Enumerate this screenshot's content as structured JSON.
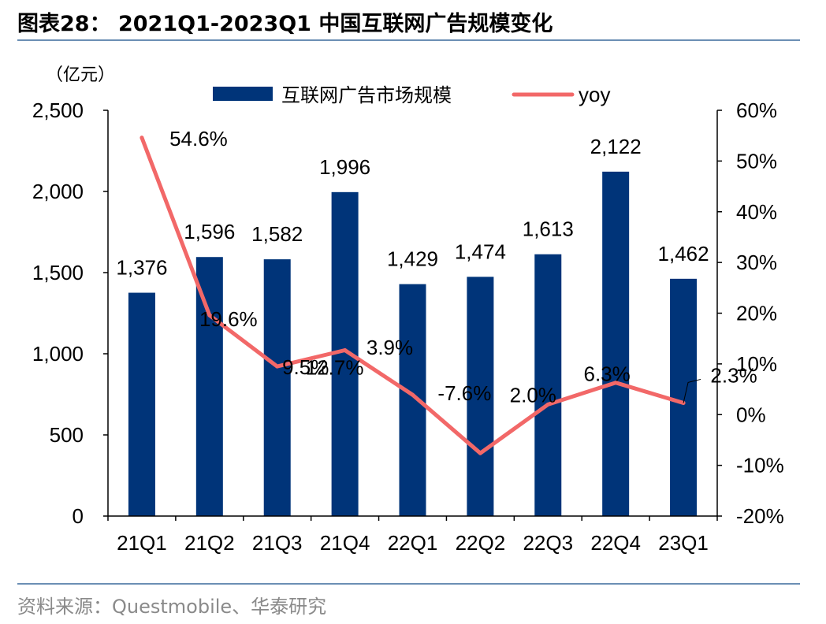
{
  "header": {
    "title": "图表28： 2021Q1-2023Q1 中国互联网广告规模变化"
  },
  "footer": {
    "source": "资料来源：Questmobile、华泰研究"
  },
  "chart_data": {
    "type": "bar",
    "unit_label": "（亿元）",
    "categories": [
      "21Q1",
      "21Q2",
      "21Q3",
      "21Q4",
      "22Q1",
      "22Q2",
      "22Q3",
      "22Q4",
      "23Q1"
    ],
    "series": [
      {
        "name": "互联网广告市场规模",
        "type": "bar",
        "axis": "left",
        "color": "#003479",
        "values": [
          1376,
          1596,
          1582,
          1996,
          1429,
          1474,
          1613,
          2122,
          1462
        ],
        "labels": [
          "1,376",
          "1,596",
          "1,582",
          "1,996",
          "1,429",
          "1,474",
          "1,613",
          "2,122",
          "1,462"
        ]
      },
      {
        "name": "yoy",
        "type": "line",
        "axis": "right",
        "color": "#f26868",
        "values": [
          54.6,
          19.6,
          9.5,
          12.7,
          3.9,
          -7.6,
          2.0,
          6.3,
          2.3
        ],
        "labels": [
          "54.6%",
          "19.6%",
          "9.5%",
          "12.7%",
          "3.9%",
          "-7.6%",
          "2.0%",
          "6.3%",
          "2.3%"
        ]
      }
    ],
    "left_axis": {
      "min": 0,
      "max": 2500,
      "ticks": [
        0,
        500,
        1000,
        1500,
        2000,
        2500
      ],
      "tick_labels": [
        "0",
        "500",
        "1,000",
        "1,500",
        "2,000",
        "2,500"
      ]
    },
    "right_axis": {
      "min": -20,
      "max": 60,
      "ticks": [
        -20,
        -10,
        0,
        10,
        20,
        30,
        40,
        50,
        60
      ],
      "tick_labels": [
        "-20%",
        "-10%",
        "0%",
        "10%",
        "20%",
        "30%",
        "40%",
        "50%",
        "60%"
      ]
    },
    "legend": {
      "placement": "top-center"
    },
    "grid": false
  }
}
